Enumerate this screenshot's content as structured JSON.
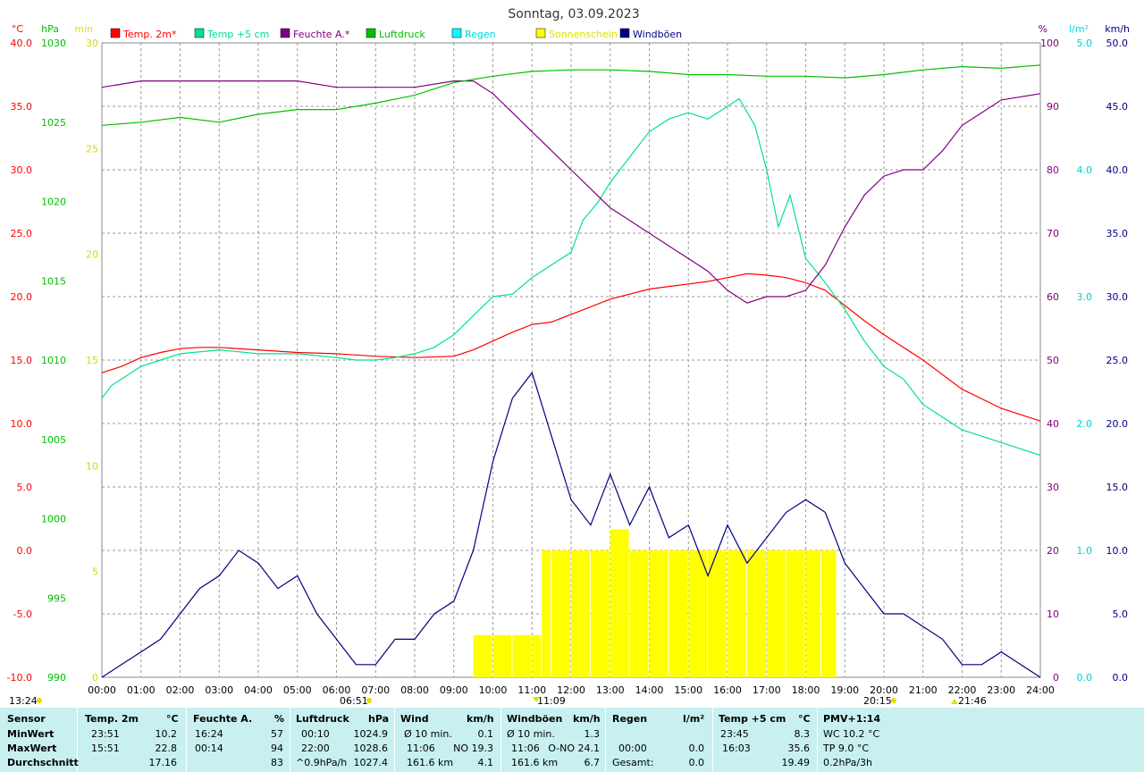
{
  "chart_data": {
    "type": "line",
    "title": "Sonntag, 03.09.2023",
    "x_ticks": [
      "00:00",
      "01:00",
      "02:00",
      "03:00",
      "04:00",
      "05:00",
      "06:00",
      "07:00",
      "08:00",
      "09:00",
      "10:00",
      "11:00",
      "12:00",
      "13:00",
      "14:00",
      "15:00",
      "16:00",
      "17:00",
      "18:00",
      "19:00",
      "20:00",
      "21:00",
      "22:00",
      "23:00",
      "24:00"
    ],
    "axes": {
      "temp": {
        "unit": "°C",
        "color": "#ff0000",
        "range": [
          -10,
          40
        ],
        "step": 5,
        "ticks": [
          "40.0",
          "35.0",
          "30.0",
          "25.0",
          "20.0",
          "15.0",
          "10.0",
          "5.0",
          "0.0",
          "-5.0",
          "-10.0"
        ]
      },
      "pressure": {
        "unit": "hPa",
        "color": "#00c000",
        "range": [
          990,
          1030
        ],
        "step": 5,
        "ticks": [
          "1030",
          "1025",
          "1020",
          "1015",
          "1010",
          "1005",
          "1000",
          "995",
          "990"
        ]
      },
      "sun": {
        "unit": "min",
        "color": "#e0e000",
        "range": [
          0,
          30
        ],
        "step": 5,
        "ticks": [
          "30",
          "25",
          "20",
          "15",
          "10",
          "5",
          "0"
        ]
      },
      "humidity": {
        "unit": "%",
        "color": "#800080",
        "range": [
          0,
          100
        ],
        "step": 10,
        "ticks": [
          "100",
          "90",
          "80",
          "70",
          "60",
          "50",
          "40",
          "30",
          "20",
          "10",
          "0"
        ]
      },
      "rain": {
        "unit": "l/m²",
        "color": "#00e0e0",
        "range": [
          0,
          5
        ],
        "step": 1,
        "ticks": [
          "5.0",
          "4.0",
          "3.0",
          "2.0",
          "1.0",
          "0.0"
        ]
      },
      "wind": {
        "unit": "km/h",
        "color": "#000080",
        "range": [
          0,
          50
        ],
        "step": 5,
        "ticks": [
          "50.0",
          "45.0",
          "40.0",
          "35.0",
          "30.0",
          "25.0",
          "20.0",
          "15.0",
          "10.0",
          "5.0",
          "0.0"
        ]
      }
    },
    "legend": [
      {
        "name": "Temp. 2m*",
        "color": "#ff0000"
      },
      {
        "name": "Temp +5 cm",
        "color": "#00e090"
      },
      {
        "name": "Feuchte A.*",
        "color": "#800080"
      },
      {
        "name": "Luftdruck",
        "color": "#00c000"
      },
      {
        "name": "Regen",
        "color": "#00ffff"
      },
      {
        "name": "Sonnenschein",
        "color": "#ffff00"
      },
      {
        "name": "Windböen",
        "color": "#000080"
      }
    ],
    "series": [
      {
        "name": "Temp. 2m*",
        "axis": "temp",
        "color": "#ff0000",
        "x": [
          0,
          0.5,
          1,
          1.5,
          2,
          2.5,
          3,
          4,
          5,
          6,
          7,
          8,
          9,
          9.5,
          10,
          10.5,
          11,
          11.5,
          12,
          13,
          14,
          15,
          15.5,
          16,
          16.5,
          17,
          17.5,
          18,
          18.5,
          19,
          19.5,
          20,
          21,
          22,
          23,
          24
        ],
        "y": [
          14,
          14.5,
          15.2,
          15.6,
          15.9,
          16,
          16,
          15.8,
          15.6,
          15.5,
          15.3,
          15.2,
          15.3,
          15.8,
          16.5,
          17.2,
          17.8,
          18.0,
          18.6,
          19.8,
          20.6,
          21.0,
          21.2,
          21.5,
          21.8,
          21.7,
          21.5,
          21.1,
          20.5,
          19.3,
          18.1,
          17.0,
          15.0,
          12.7,
          11.2,
          10.2
        ]
      },
      {
        "name": "Temp +5 cm",
        "axis": "temp",
        "color": "#00e090",
        "x": [
          0,
          0.25,
          0.5,
          1,
          1.5,
          2,
          3,
          4,
          5,
          6,
          6.5,
          7,
          7.5,
          8,
          8.5,
          9,
          9.5,
          10,
          10.5,
          11,
          11.5,
          12,
          12.3,
          12.7,
          13,
          13.5,
          14,
          14.5,
          15,
          15.5,
          16,
          16.3,
          16.7,
          17,
          17.3,
          17.6,
          18,
          18.4,
          19,
          19.5,
          20,
          20.5,
          21,
          21.5,
          22,
          22.5,
          23,
          24
        ],
        "y": [
          12,
          13,
          13.5,
          14.5,
          15,
          15.5,
          15.8,
          15.5,
          15.5,
          15.2,
          15,
          15,
          15.2,
          15.5,
          16,
          17,
          18.5,
          20,
          20.2,
          21.5,
          22.5,
          23.5,
          26,
          27.5,
          29,
          31,
          33,
          34,
          34.5,
          34,
          35,
          35.6,
          33.5,
          30,
          25.5,
          28,
          23,
          21.5,
          19,
          16.5,
          14.5,
          13.5,
          11.5,
          10.5,
          9.5,
          9,
          8.5,
          7.5
        ]
      },
      {
        "name": "Feuchte A.*",
        "axis": "humidity",
        "color": "#800080",
        "x": [
          0,
          1,
          2,
          3,
          4,
          5,
          6,
          7,
          8,
          9,
          9.5,
          10,
          10.5,
          11,
          11.5,
          12,
          12.5,
          13,
          13.5,
          14,
          14.5,
          15,
          15.5,
          16,
          16.5,
          17,
          17.5,
          18,
          18.5,
          19,
          19.5,
          20,
          20.5,
          21,
          21.5,
          22,
          22.5,
          23,
          24
        ],
        "y": [
          93,
          94,
          94,
          94,
          94,
          94,
          93,
          93,
          93,
          94,
          94,
          92,
          89,
          86,
          83,
          80,
          77,
          74,
          72,
          70,
          68,
          66,
          64,
          61,
          59,
          60,
          60,
          61,
          65,
          71,
          76,
          79,
          80,
          80,
          83,
          87,
          89,
          91,
          92
        ]
      },
      {
        "name": "Luftdruck",
        "axis": "pressure",
        "color": "#00c000",
        "x": [
          0,
          1,
          2,
          3,
          4,
          5,
          6,
          7,
          8,
          9,
          10,
          11,
          12,
          13,
          14,
          15,
          16,
          17,
          18,
          19,
          20,
          21,
          22,
          23,
          24
        ],
        "y": [
          1024.8,
          1025.0,
          1025.3,
          1025.0,
          1025.5,
          1025.8,
          1025.8,
          1026.2,
          1026.7,
          1027.5,
          1027.9,
          1028.2,
          1028.3,
          1028.3,
          1028.2,
          1028.0,
          1028.0,
          1027.9,
          1027.9,
          1027.8,
          1028.0,
          1028.3,
          1028.5,
          1028.4,
          1028.6
        ]
      },
      {
        "name": "Windböen",
        "axis": "wind",
        "color": "#000080",
        "x": [
          0,
          0.5,
          1,
          1.5,
          2,
          2.5,
          3,
          3.5,
          4,
          4.5,
          5,
          5.5,
          6,
          6.5,
          7,
          7.5,
          8,
          8.5,
          9,
          9.5,
          10,
          10.5,
          11,
          11.5,
          12,
          12.5,
          13,
          13.5,
          14,
          14.5,
          15,
          15.5,
          16,
          16.5,
          17,
          17.5,
          18,
          18.5,
          19,
          19.5,
          20,
          20.5,
          21,
          21.5,
          22,
          22.5,
          23,
          23.5,
          24
        ],
        "y": [
          0,
          1,
          2,
          3,
          5,
          7,
          8,
          10,
          9,
          7,
          8,
          5,
          3,
          1,
          1,
          3,
          3,
          5,
          6,
          10,
          17,
          22,
          24,
          19,
          14,
          12,
          16,
          12,
          15,
          11,
          12,
          8,
          12,
          9,
          11,
          13,
          14,
          13,
          9,
          7,
          5,
          5,
          4,
          3,
          1,
          1,
          2,
          1,
          0
        ]
      }
    ],
    "sun_bars": {
      "axis": "sun",
      "color": "#ffff00",
      "x": [
        9.5,
        10.0,
        10.5,
        11.0,
        11.25,
        11.5,
        12.0,
        12.5,
        13.0,
        13.5,
        14.0,
        14.5,
        15.0,
        15.5,
        16.0,
        16.5,
        17.0,
        17.5,
        18.0,
        18.4
      ],
      "y": [
        2,
        2,
        2,
        2,
        6,
        6,
        6,
        6,
        7,
        6,
        6,
        6,
        6,
        6,
        6,
        6,
        6,
        6,
        6,
        6
      ]
    },
    "markers": {
      "left": "13:24",
      "sunrise": "06:51",
      "peak": "11:09",
      "sunset": "20:15",
      "right": "21:46"
    }
  },
  "table": {
    "headers": {
      "sensor": "Sensor",
      "temp": "Temp. 2m",
      "temp_unit": "°C",
      "hum": "Feuchte A.",
      "hum_unit": "%",
      "press": "Luftdruck",
      "press_unit": "hPa",
      "wind": "Wind",
      "wind_unit": "km/h",
      "gust": "Windböen",
      "gust_unit": "km/h",
      "rain": "Regen",
      "rain_unit": "l/m²",
      "t5": "Temp +5 cm",
      "t5_unit": "°C",
      "pmv": "PMV+1:14"
    },
    "rows": [
      {
        "label": "MinWert",
        "temp_t": "23:51",
        "temp_v": "10.2",
        "hum_t": "16:24",
        "hum_v": "57",
        "press_t": "00:10",
        "press_v": "1024.9",
        "wind_t": "Ø 10 min.",
        "wind_v": "0.1",
        "gust_t": "Ø 10 min.",
        "gust_v": "1.3",
        "rain_t": "",
        "rain_v": "",
        "t5_t": "23:45",
        "t5_v": "8.3",
        "pmv": "WC 10.2 °C"
      },
      {
        "label": "MaxWert",
        "temp_t": "15:51",
        "temp_v": "22.8",
        "hum_t": "00:14",
        "hum_v": "94",
        "press_t": "22:00",
        "press_v": "1028.6",
        "wind_t": "11:06",
        "wind_d": "NO 19.3",
        "gust_t": "11:06",
        "gust_d": "O-NO 24.1",
        "rain_t": "00:00",
        "rain_v": "0.0",
        "t5_t": "16:03",
        "t5_v": "35.6",
        "pmv": "TP 9.0 °C"
      },
      {
        "label": "Durchschnitt",
        "temp_t": "",
        "temp_v": "17.16",
        "hum_t": "",
        "hum_v": "83",
        "press_t": "^0.9hPa/h",
        "press_v": "1027.4",
        "wind_t": "161.6 km",
        "wind_v": "4.1",
        "gust_t": "161.6 km",
        "gust_v": "6.7",
        "rain_t": "Gesamt:",
        "rain_v": "0.0",
        "t5_t": "",
        "t5_v": "19.49",
        "pmv": "0.2hPa/3h"
      }
    ]
  }
}
